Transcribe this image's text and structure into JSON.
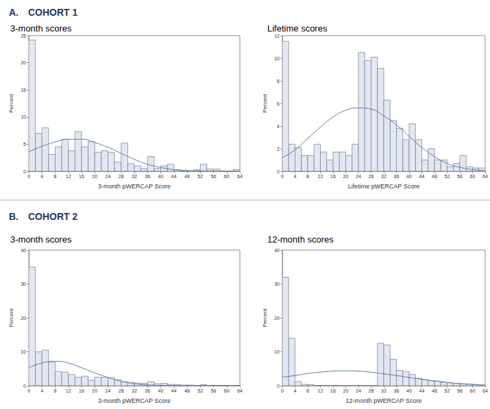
{
  "sections": [
    {
      "label": "A.",
      "title": "COHORT 1"
    },
    {
      "label": "B.",
      "title": "COHORT 2"
    }
  ],
  "chart_data": [
    {
      "type": "histogram",
      "title": "3-month scores",
      "xlabel": "3-month pWERCAP Score",
      "ylabel": "Percent",
      "bins": [
        0,
        2,
        4,
        6,
        8,
        10,
        12,
        14,
        16,
        18,
        20,
        22,
        24,
        26,
        28,
        30,
        32,
        34,
        36,
        38,
        40,
        42,
        44,
        46,
        48,
        50,
        52,
        54,
        56,
        58,
        60,
        62,
        64
      ],
      "values": [
        24.2,
        7.0,
        8.0,
        3.1,
        4.5,
        5.9,
        3.8,
        7.3,
        4.5,
        5.5,
        3.5,
        3.8,
        3.5,
        1.7,
        5.2,
        1.4,
        1.0,
        0.5,
        2.7,
        0.5,
        1.0,
        1.3,
        0.3,
        0,
        0,
        0.3,
        1.3,
        0.4,
        0.4,
        0,
        0,
        0.3
      ],
      "color": "#e3e7f1",
      "curve": {
        "type": "line",
        "color": "#5b79ad",
        "x": [
          0,
          4,
          8,
          12,
          16,
          20,
          24,
          28,
          32,
          36,
          40,
          44,
          48,
          52,
          56,
          60,
          64
        ],
        "values": [
          3.6,
          4.6,
          5.4,
          5.9,
          5.9,
          5.3,
          4.4,
          3.3,
          2.2,
          1.3,
          0.7,
          0.3,
          0.15,
          0.05,
          0,
          0,
          0
        ]
      },
      "xlim": [
        0,
        64
      ],
      "xticks": [
        0,
        4,
        8,
        12,
        16,
        20,
        24,
        28,
        32,
        36,
        40,
        44,
        48,
        52,
        56,
        60,
        64
      ],
      "ylim": [
        0,
        25
      ],
      "yticks": [
        0,
        5,
        10,
        15,
        20,
        25
      ],
      "grid": false
    },
    {
      "type": "histogram",
      "title": "Lifetime scores",
      "xlabel": "Lifetime pWERCAP Score",
      "ylabel": "Percent",
      "bins": [
        0,
        2,
        4,
        6,
        8,
        10,
        12,
        14,
        16,
        18,
        20,
        22,
        24,
        26,
        28,
        30,
        32,
        34,
        36,
        38,
        40,
        42,
        44,
        46,
        48,
        50,
        52,
        54,
        56,
        58,
        60,
        62,
        64
      ],
      "values": [
        11.5,
        2.4,
        2.1,
        1.4,
        1.4,
        2.4,
        1.7,
        1.0,
        1.7,
        1.7,
        1.4,
        2.4,
        10.5,
        9.8,
        10.1,
        9.1,
        6.3,
        4.5,
        3.8,
        2.8,
        4.2,
        2.8,
        1.0,
        2.0,
        1.0,
        1.0,
        0.4,
        0.7,
        1.4,
        0.4,
        0.3,
        0.3
      ],
      "color": "#e3e7f1",
      "curve": {
        "type": "line",
        "color": "#5b79ad",
        "x": [
          0,
          4,
          8,
          12,
          16,
          20,
          24,
          28,
          32,
          36,
          40,
          44,
          48,
          52,
          56,
          60,
          64
        ],
        "values": [
          1.2,
          1.9,
          2.9,
          3.9,
          4.8,
          5.4,
          5.6,
          5.5,
          4.9,
          4.1,
          3.1,
          2.1,
          1.3,
          0.7,
          0.35,
          0.15,
          0.06
        ]
      },
      "xlim": [
        0,
        64
      ],
      "xticks": [
        0,
        4,
        8,
        12,
        16,
        20,
        24,
        28,
        32,
        36,
        40,
        44,
        48,
        52,
        56,
        60,
        64
      ],
      "ylim": [
        0,
        12
      ],
      "yticks": [
        0,
        2,
        4,
        6,
        8,
        10,
        12
      ],
      "grid": false
    },
    {
      "type": "histogram",
      "title": "3-month scores",
      "xlabel": "3-month pWERCAP Score",
      "ylabel": "Percent",
      "bins": [
        0,
        2,
        4,
        6,
        8,
        10,
        12,
        14,
        16,
        18,
        20,
        22,
        24,
        26,
        28,
        30,
        32,
        34,
        36,
        38,
        40,
        42,
        44,
        46,
        48,
        50,
        52,
        54,
        56,
        58,
        60,
        62,
        64
      ],
      "values": [
        35,
        10,
        10.5,
        7,
        4.2,
        4.0,
        3.3,
        2.5,
        2.8,
        1.6,
        2.5,
        2.5,
        2.4,
        1.8,
        1.2,
        1.0,
        0.8,
        0.7,
        1.2,
        0.6,
        0.7,
        0.4,
        0.3,
        0.2,
        0.2,
        0.1,
        0.3,
        0.1,
        0.1,
        0.1,
        0,
        0.1
      ],
      "color": "#e3e7f1",
      "curve": {
        "type": "line",
        "color": "#5b79ad",
        "x": [
          0,
          4,
          8,
          12,
          16,
          20,
          24,
          28,
          32,
          36,
          40,
          44,
          48,
          52,
          56,
          60,
          64
        ],
        "values": [
          5.3,
          6.7,
          7.2,
          6.7,
          5.3,
          3.8,
          2.4,
          1.3,
          0.6,
          0.25,
          0.1,
          0.03,
          0,
          0,
          0,
          0,
          0
        ]
      },
      "xlim": [
        0,
        64
      ],
      "xticks": [
        0,
        4,
        8,
        12,
        16,
        20,
        24,
        28,
        32,
        36,
        40,
        44,
        48,
        52,
        56,
        60,
        64
      ],
      "ylim": [
        0,
        40
      ],
      "yticks": [
        0,
        10,
        20,
        30,
        40
      ],
      "grid": false
    },
    {
      "type": "histogram",
      "title": "12-month scores",
      "xlabel": "12-month pWERCAP Score",
      "ylabel": "Percent",
      "bins": [
        0,
        2,
        4,
        6,
        8,
        10,
        12,
        14,
        16,
        18,
        20,
        22,
        24,
        26,
        28,
        30,
        32,
        34,
        36,
        38,
        40,
        42,
        44,
        46,
        48,
        50,
        52,
        54,
        56,
        58,
        60,
        62,
        64
      ],
      "values": [
        32,
        14,
        1.2,
        0.4,
        0.3,
        0.1,
        0.1,
        0,
        0.1,
        0,
        0.1,
        0,
        0.1,
        0,
        0.1,
        12.5,
        12,
        7.8,
        4.5,
        4.2,
        3.3,
        2.2,
        1.8,
        1.5,
        1.4,
        1.0,
        0.8,
        0.7,
        0.6,
        0.5,
        0.3,
        0.2
      ],
      "color": "#e3e7f1",
      "curve": {
        "type": "line",
        "color": "#5b79ad",
        "x": [
          0,
          4,
          8,
          12,
          16,
          20,
          24,
          28,
          32,
          36,
          40,
          44,
          48,
          52,
          56,
          60,
          64
        ],
        "values": [
          2.5,
          3.0,
          3.6,
          4.0,
          4.3,
          4.4,
          4.3,
          4.0,
          3.5,
          3.0,
          2.4,
          1.9,
          1.4,
          1.0,
          0.6,
          0.4,
          0.2
        ]
      },
      "xlim": [
        0,
        64
      ],
      "xticks": [
        0,
        4,
        8,
        12,
        16,
        20,
        24,
        28,
        32,
        36,
        40,
        44,
        48,
        52,
        56,
        60,
        64
      ],
      "ylim": [
        0,
        40
      ],
      "yticks": [
        0,
        10,
        20,
        30,
        40
      ],
      "grid": false
    }
  ]
}
